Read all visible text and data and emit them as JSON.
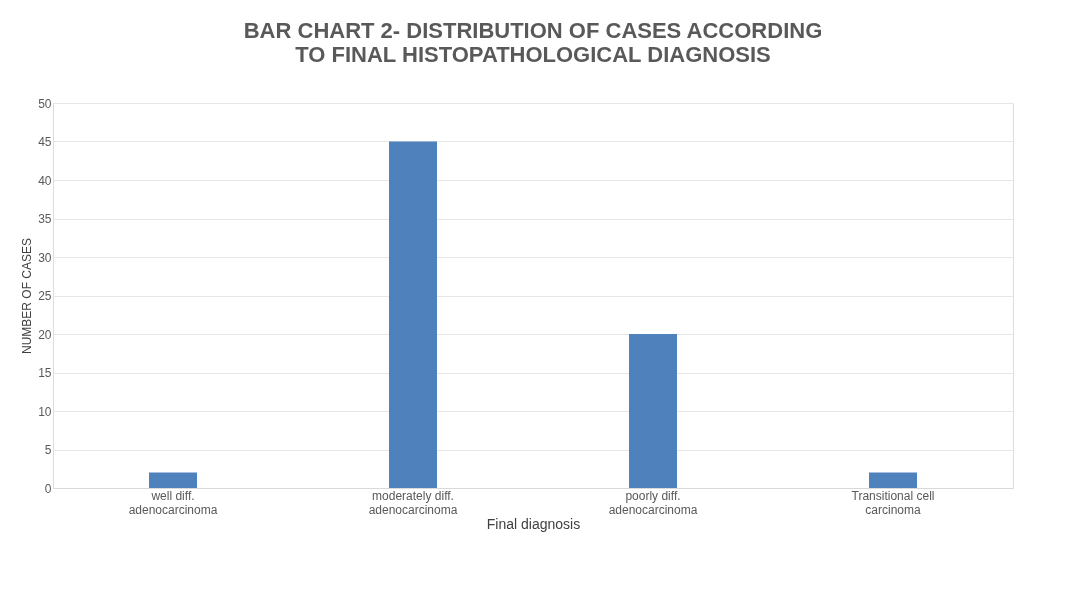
{
  "chart_data": {
    "type": "bar",
    "title": "BAR CHART 2- DISTRIBUTION OF CASES ACCORDING\nTO FINAL HISTOPATHOLOGICAL DIAGNOSIS",
    "xlabel": "Final diagnosis",
    "ylabel": "NUMBER OF CASES",
    "categories": [
      "well diff.\nadenocarcinoma",
      "moderately diff.\nadenocarcinoma",
      "poorly diff.\nadenocarcinoma",
      "Transitional cell\ncarcinoma"
    ],
    "values": [
      2,
      45,
      20,
      2
    ],
    "color": "#4f81bd",
    "ylim": [
      0,
      50
    ],
    "yticks": [
      0,
      5,
      10,
      15,
      20,
      25,
      30,
      35,
      40,
      45,
      50
    ],
    "grid": "y"
  }
}
